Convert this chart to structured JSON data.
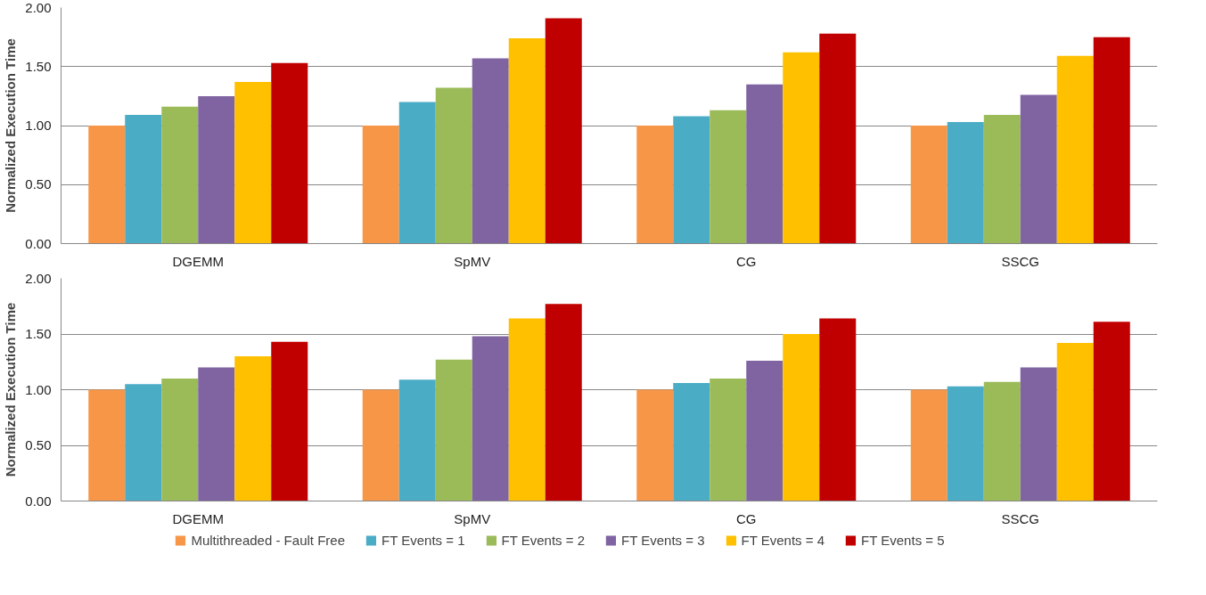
{
  "chart_data": [
    {
      "type": "bar",
      "ylabel": "Normalized Execution Time",
      "categories": [
        "DGEMM",
        "SpMV",
        "CG",
        "SSCG"
      ],
      "ylim": [
        0,
        2
      ],
      "yticks": [
        {
          "value": 0,
          "label": "0.00"
        },
        {
          "value": 0.5,
          "label": "0.50"
        },
        {
          "value": 1,
          "label": "1.00"
        },
        {
          "value": 1.5,
          "label": "1.50"
        },
        {
          "value": 2,
          "label": "2.00"
        }
      ],
      "grid": "y",
      "legend": false,
      "series": [
        {
          "color": "#f79646",
          "values": [
            1.0,
            1.0,
            1.0,
            1.0
          ]
        },
        {
          "color": "#4bacc6",
          "values": [
            1.09,
            1.2,
            1.08,
            1.03
          ]
        },
        {
          "color": "#9bbb59",
          "values": [
            1.16,
            1.32,
            1.13,
            1.09
          ]
        },
        {
          "color": "#8064a2",
          "values": [
            1.25,
            1.57,
            1.35,
            1.26
          ]
        },
        {
          "color": "#ffc000",
          "values": [
            1.37,
            1.74,
            1.62,
            1.59
          ]
        },
        {
          "color": "#c00000",
          "values": [
            1.53,
            1.91,
            1.78,
            1.75
          ]
        }
      ]
    },
    {
      "type": "bar",
      "ylabel": "Normalized Execution Time",
      "categories": [
        "DGEMM",
        "SpMV",
        "CG",
        "SSCG"
      ],
      "ylim": [
        0,
        2
      ],
      "yticks": [
        {
          "value": 0,
          "label": "0.00"
        },
        {
          "value": 0.5,
          "label": "0.50"
        },
        {
          "value": 1,
          "label": "1.00"
        },
        {
          "value": 1.5,
          "label": "1.50"
        },
        {
          "value": 2,
          "label": "2.00"
        }
      ],
      "grid": "y",
      "legend": "bottom",
      "series": [
        {
          "name": "Multithreaded - Fault Free",
          "color": "#f79646",
          "values": [
            1.0,
            1.0,
            1.0,
            1.0
          ]
        },
        {
          "name": "FT Events = 1",
          "color": "#4bacc6",
          "values": [
            1.05,
            1.09,
            1.06,
            1.03
          ]
        },
        {
          "name": "FT Events = 2",
          "color": "#9bbb59",
          "values": [
            1.1,
            1.27,
            1.1,
            1.07
          ]
        },
        {
          "name": "FT Events = 3",
          "color": "#8064a2",
          "values": [
            1.2,
            1.48,
            1.26,
            1.2
          ]
        },
        {
          "name": "FT Events = 4",
          "color": "#ffc000",
          "values": [
            1.3,
            1.64,
            1.5,
            1.42
          ]
        },
        {
          "name": "FT Events = 5",
          "color": "#c00000",
          "values": [
            1.43,
            1.77,
            1.64,
            1.61
          ]
        }
      ]
    }
  ]
}
